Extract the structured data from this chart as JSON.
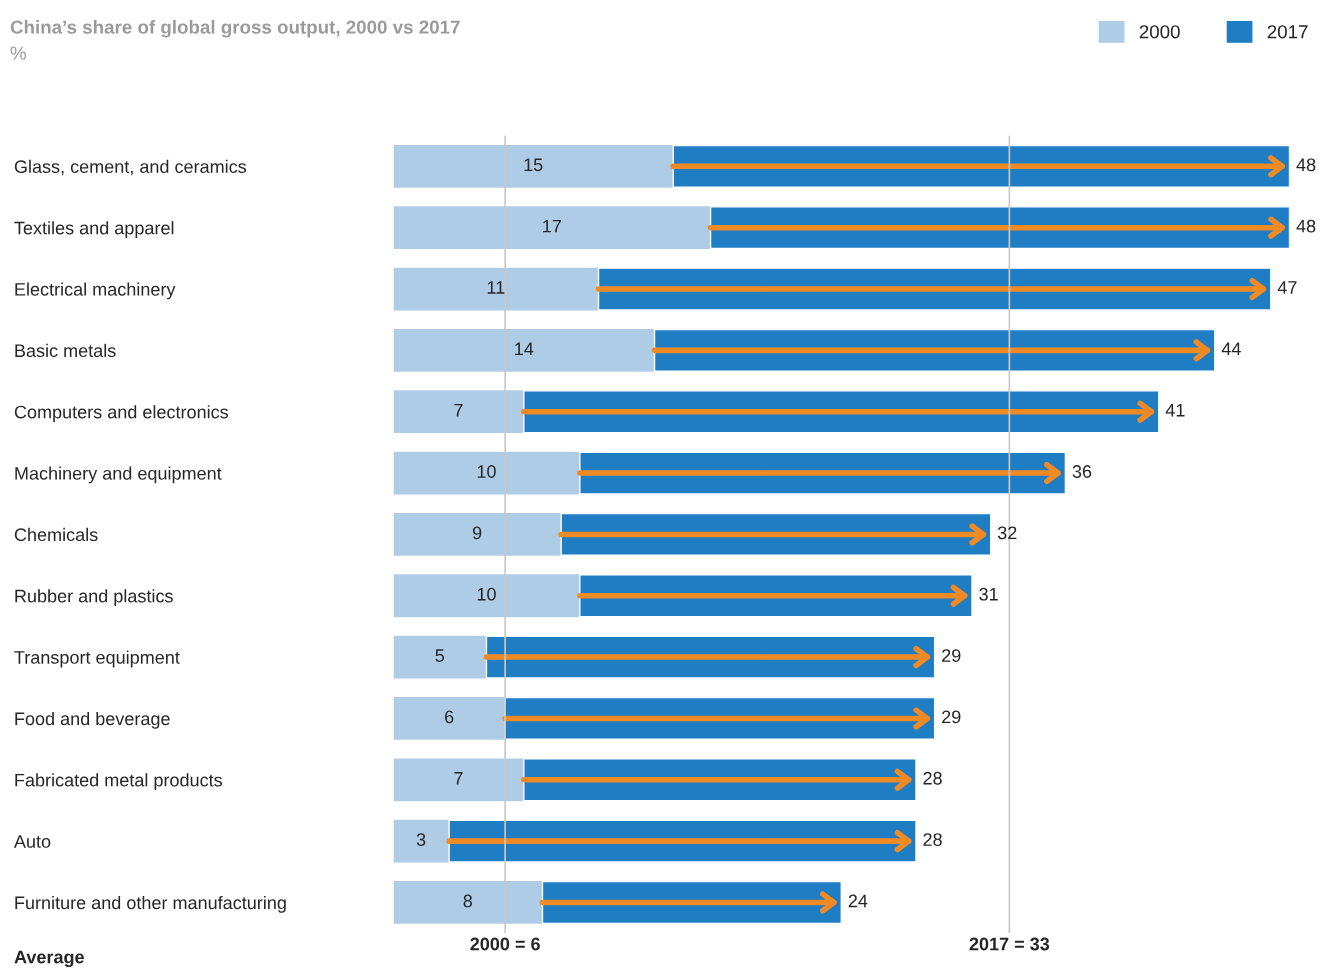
{
  "chart_data": {
    "type": "bar",
    "orientation": "horizontal",
    "title": "China’s share of global gross output, 2000 vs 2017",
    "subtitle": "%",
    "categories": [
      "Glass, cement, and ceramics",
      "Textiles and apparel",
      "Electrical machinery",
      "Basic metals",
      "Computers and electronics",
      "Machinery and equipment",
      "Chemicals",
      "Rubber and plastics",
      "Transport equipment",
      "Food and beverage",
      "Fabricated metal products",
      "Auto",
      "Furniture and other manufacturing"
    ],
    "series": [
      {
        "name": "2000",
        "color": "#aecce6",
        "values": [
          15,
          17,
          11,
          14,
          7,
          10,
          9,
          10,
          5,
          6,
          7,
          3,
          8
        ]
      },
      {
        "name": "2017",
        "color": "#1f7dc4",
        "values": [
          48,
          48,
          47,
          44,
          41,
          36,
          32,
          31,
          29,
          29,
          28,
          28,
          24
        ]
      }
    ],
    "data_labels": true,
    "legend": "top right",
    "grid": false,
    "ref_lines": [
      {
        "axis": "x",
        "value": 6,
        "label": "2000 = 6",
        "color": "#c8c8c8"
      },
      {
        "axis": "x",
        "value": 33,
        "label": "2017 = 33",
        "color": "#c8c8c8"
      }
    ],
    "annotations": [
      "Average"
    ]
  }
}
